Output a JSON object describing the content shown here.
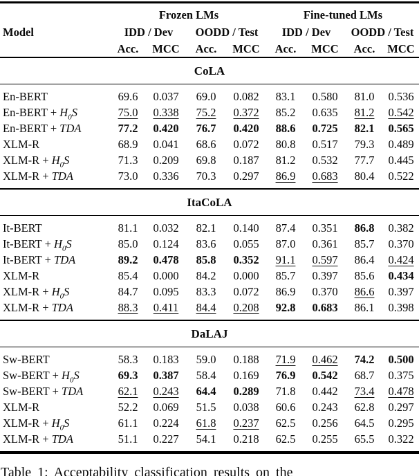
{
  "meta": {
    "method_joiner": " + "
  },
  "colors": {
    "text": "#0a0a0a",
    "rule": "#000000",
    "background": "#ffffff"
  },
  "header": {
    "model_label": "Model",
    "groups": [
      {
        "label": "Frozen LMs"
      },
      {
        "label": "Fine-tuned LMs"
      }
    ],
    "subgroups": [
      "IDD / Dev",
      "OODD / Test",
      "IDD / Dev",
      "OODD / Test"
    ],
    "metrics": [
      "Acc.",
      "MCC",
      "Acc.",
      "MCC",
      "Acc.",
      "MCC",
      "Acc.",
      "MCC"
    ]
  },
  "sections": [
    {
      "title": "CoLA",
      "rows": [
        {
          "base": "En-BERT",
          "method": "",
          "vals": [
            "69.6",
            "0.037",
            "69.0",
            "0.082",
            "83.1",
            "0.580",
            "81.0",
            "0.536"
          ],
          "marks": [
            "",
            "",
            "",
            "",
            "",
            "",
            "",
            ""
          ]
        },
        {
          "base": "En-BERT",
          "method": "H0S",
          "vals": [
            "75.0",
            "0.338",
            "75.2",
            "0.372",
            "85.2",
            "0.635",
            "81.2",
            "0.542"
          ],
          "marks": [
            "u",
            "u",
            "u",
            "u",
            "",
            "",
            "u",
            "u"
          ]
        },
        {
          "base": "En-BERT",
          "method": "TDA",
          "vals": [
            "77.2",
            "0.420",
            "76.7",
            "0.420",
            "88.6",
            "0.725",
            "82.1",
            "0.565"
          ],
          "marks": [
            "b",
            "b",
            "b",
            "b",
            "b",
            "b",
            "b",
            "b"
          ]
        },
        {
          "base": "XLM-R",
          "method": "",
          "vals": [
            "68.9",
            "0.041",
            "68.6",
            "0.072",
            "80.8",
            "0.517",
            "79.3",
            "0.489"
          ],
          "marks": [
            "",
            "",
            "",
            "",
            "",
            "",
            "",
            ""
          ]
        },
        {
          "base": "XLM-R",
          "method": "H0S",
          "vals": [
            "71.3",
            "0.209",
            "69.8",
            "0.187",
            "81.2",
            "0.532",
            "77.7",
            "0.445"
          ],
          "marks": [
            "",
            "",
            "",
            "",
            "",
            "",
            "",
            ""
          ]
        },
        {
          "base": "XLM-R",
          "method": "TDA",
          "vals": [
            "73.0",
            "0.336",
            "70.3",
            "0.297",
            "86.9",
            "0.683",
            "80.4",
            "0.522"
          ],
          "marks": [
            "",
            "",
            "",
            "",
            "u",
            "u",
            "",
            ""
          ]
        }
      ]
    },
    {
      "title": "ItaCoLA",
      "rows": [
        {
          "base": "It-BERT",
          "method": "",
          "vals": [
            "81.1",
            "0.032",
            "82.1",
            "0.140",
            "87.4",
            "0.351",
            "86.8",
            "0.382"
          ],
          "marks": [
            "",
            "",
            "",
            "",
            "",
            "",
            "b",
            ""
          ]
        },
        {
          "base": "It-BERT",
          "method": "H0S",
          "vals": [
            "85.0",
            "0.124",
            "83.6",
            "0.055",
            "87.0",
            "0.361",
            "85.7",
            "0.370"
          ],
          "marks": [
            "",
            "",
            "",
            "",
            "",
            "",
            "",
            ""
          ]
        },
        {
          "base": "It-BERT",
          "method": "TDA",
          "vals": [
            "89.2",
            "0.478",
            "85.8",
            "0.352",
            "91.1",
            "0.597",
            "86.4",
            "0.424"
          ],
          "marks": [
            "b",
            "b",
            "b",
            "b",
            "u",
            "u",
            "",
            "u"
          ]
        },
        {
          "base": "XLM-R",
          "method": "",
          "vals": [
            "85.4",
            "0.000",
            "84.2",
            "0.000",
            "85.7",
            "0.397",
            "85.6",
            "0.434"
          ],
          "marks": [
            "",
            "",
            "",
            "",
            "",
            "",
            "",
            "b"
          ]
        },
        {
          "base": "XLM-R",
          "method": "H0S",
          "vals": [
            "84.7",
            "0.095",
            "83.3",
            "0.072",
            "86.9",
            "0.370",
            "86.6",
            "0.397"
          ],
          "marks": [
            "",
            "",
            "",
            "",
            "",
            "",
            "u",
            ""
          ]
        },
        {
          "base": "XLM-R",
          "method": "TDA",
          "vals": [
            "88.3",
            "0.411",
            "84.4",
            "0.208",
            "92.8",
            "0.683",
            "86.1",
            "0.398"
          ],
          "marks": [
            "u",
            "u",
            "u",
            "u",
            "b",
            "b",
            "",
            ""
          ]
        }
      ]
    },
    {
      "title": "DaLAJ",
      "rows": [
        {
          "base": "Sw-BERT",
          "method": "",
          "vals": [
            "58.3",
            "0.183",
            "59.0",
            "0.188",
            "71.9",
            "0.462",
            "74.2",
            "0.500"
          ],
          "marks": [
            "",
            "",
            "",
            "",
            "u",
            "u",
            "b",
            "b"
          ]
        },
        {
          "base": "Sw-BERT",
          "method": "H0S",
          "vals": [
            "69.3",
            "0.387",
            "58.4",
            "0.169",
            "76.9",
            "0.542",
            "68.7",
            "0.375"
          ],
          "marks": [
            "b",
            "b",
            "",
            "",
            "b",
            "b",
            "",
            ""
          ]
        },
        {
          "base": "Sw-BERT",
          "method": "TDA",
          "vals": [
            "62.1",
            "0.243",
            "64.4",
            "0.289",
            "71.8",
            "0.442",
            "73.4",
            "0.478"
          ],
          "marks": [
            "u",
            "u",
            "b",
            "b",
            "",
            "",
            "u",
            "u"
          ]
        },
        {
          "base": "XLM-R",
          "method": "",
          "vals": [
            "52.2",
            "0.069",
            "51.5",
            "0.038",
            "60.6",
            "0.243",
            "62.8",
            "0.297"
          ],
          "marks": [
            "",
            "",
            "",
            "",
            "",
            "",
            "",
            ""
          ]
        },
        {
          "base": "XLM-R",
          "method": "H0S",
          "vals": [
            "61.1",
            "0.224",
            "61.8",
            "0.237",
            "62.5",
            "0.256",
            "64.5",
            "0.295"
          ],
          "marks": [
            "",
            "",
            "u",
            "u",
            "",
            "",
            "",
            ""
          ]
        },
        {
          "base": "XLM-R",
          "method": "TDA",
          "vals": [
            "51.1",
            "0.227",
            "54.1",
            "0.218",
            "62.5",
            "0.255",
            "65.5",
            "0.322"
          ],
          "marks": [
            "",
            "",
            "",
            "",
            "",
            "",
            "",
            ""
          ]
        }
      ]
    }
  ],
  "caption": "Table 1: Acceptability classification results on the"
}
